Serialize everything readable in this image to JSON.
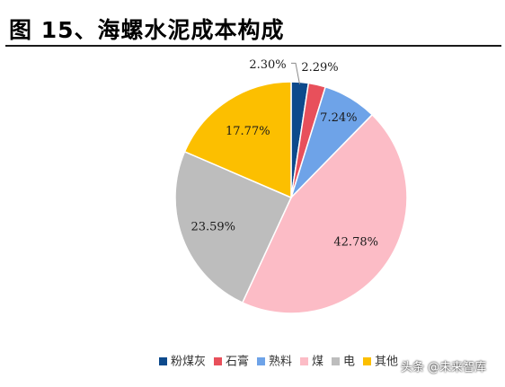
{
  "page": {
    "title": "图 15、海螺水泥成本构成",
    "watermark": "头条 @未来智库"
  },
  "chart_data": {
    "type": "pie",
    "title": "",
    "start_angle_deg": 0,
    "direction": "clockwise",
    "legend_placement": "bottom",
    "slices": [
      {
        "name": "粉煤灰",
        "value": 2.3,
        "label": "2.30%",
        "color": "#0d4a8c"
      },
      {
        "name": "石膏",
        "value": 2.29,
        "label": "2.29%",
        "color": "#e8505b"
      },
      {
        "name": "熟料",
        "value": 7.24,
        "label": "7.24%",
        "color": "#6ea3e8"
      },
      {
        "name": "煤",
        "value": 42.78,
        "label": "42.78%",
        "color": "#fcbcc6"
      },
      {
        "name": "电",
        "value": 23.59,
        "label": "23.59%",
        "color": "#bdbdbd"
      },
      {
        "name": "其他",
        "value": 17.77,
        "label": "17.77%",
        "color": "#fcbf00"
      }
    ]
  }
}
